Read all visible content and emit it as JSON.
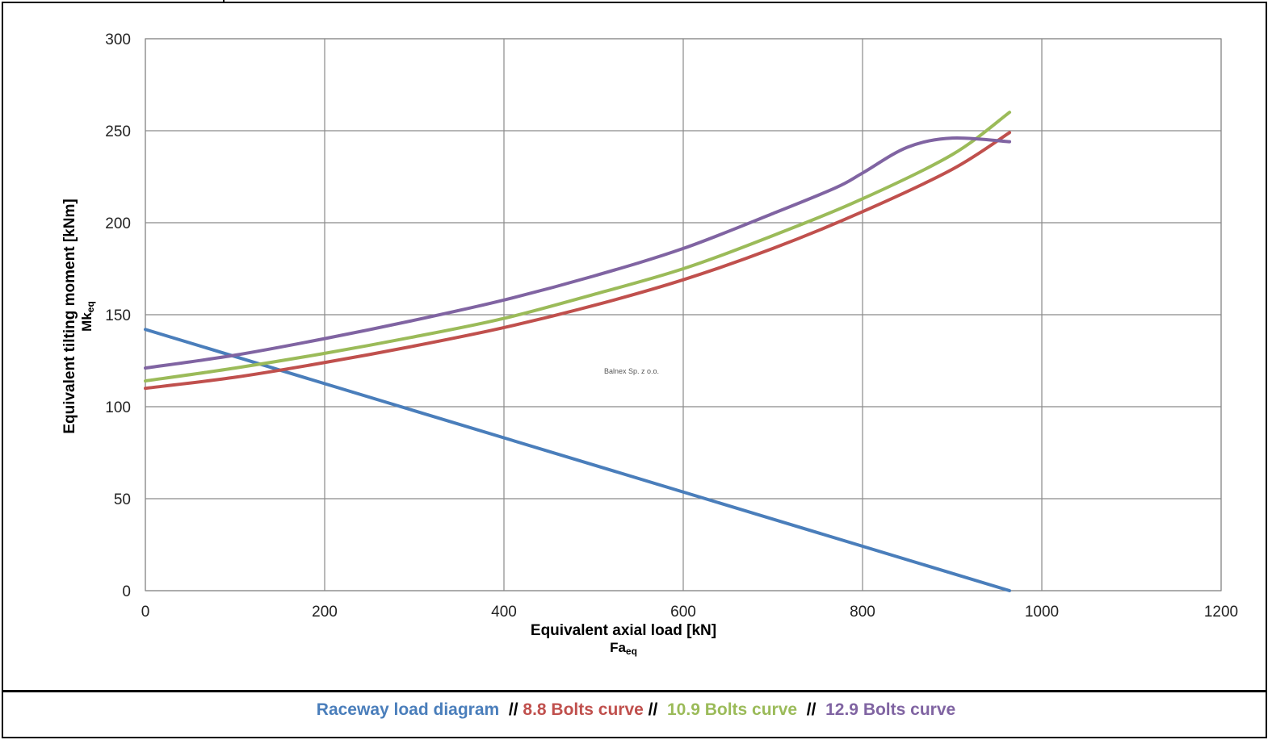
{
  "chart_data": {
    "type": "line",
    "xlabel": "Equivalent axial load [kN]",
    "xlabel_symbol": "Fa",
    "xlabel_symbol_sub": "eq",
    "ylabel": "Equivalent tilting moment [kNm]",
    "ylabel_symbol": "Mk",
    "ylabel_symbol_sub": "eq",
    "xlim": [
      0,
      1200
    ],
    "ylim": [
      0,
      300
    ],
    "x_ticks": [
      0,
      200,
      400,
      600,
      800,
      1000,
      1200
    ],
    "y_ticks": [
      0,
      50,
      100,
      150,
      200,
      250,
      300
    ],
    "x_tick_labels": [
      "0",
      "200",
      "400",
      "600",
      "800",
      "1000",
      "1200"
    ],
    "y_tick_labels": [
      "0",
      "50",
      "100",
      "150",
      "200",
      "250",
      "300"
    ],
    "grid": true,
    "watermark": "Balnex Sp. z o.o.",
    "series": [
      {
        "name": "Raceway load diagram",
        "color": "#4a7ebb",
        "x": [
          0,
          964
        ],
        "y": [
          142,
          0
        ]
      },
      {
        "name": "8.8 Bolts curve",
        "color": "#c0504d",
        "x": [
          0,
          100,
          200,
          300,
          400,
          500,
          600,
          700,
          800,
          900,
          964
        ],
        "y": [
          110,
          116,
          124,
          133,
          143,
          155,
          169,
          186,
          206,
          229,
          249
        ]
      },
      {
        "name": "10.9 Bolts curve",
        "color": "#9bbb59",
        "x": [
          0,
          100,
          200,
          300,
          400,
          500,
          600,
          700,
          800,
          900,
          964
        ],
        "y": [
          114,
          121,
          129,
          138,
          148,
          161,
          175,
          193,
          213,
          237,
          260
        ]
      },
      {
        "name": "12.9 Bolts curve",
        "color": "#8064a2",
        "x": [
          0,
          100,
          200,
          300,
          400,
          500,
          600,
          700,
          770,
          800,
          850,
          900,
          964
        ],
        "y": [
          121,
          128,
          137,
          147,
          158,
          171,
          186,
          205,
          219,
          227,
          241,
          246,
          244
        ]
      }
    ]
  },
  "legend": {
    "items": [
      {
        "label": "Raceway load diagram",
        "color": "#4a7ebb"
      },
      {
        "label": "8.8 Bolts curve",
        "color": "#c0504d"
      },
      {
        "label": "10.9 Bolts curve",
        "color": "#9bbb59"
      },
      {
        "label": "12.9 Bolts curve",
        "color": "#8064a2"
      }
    ],
    "separator": "//",
    "separator_color": "#000000"
  }
}
